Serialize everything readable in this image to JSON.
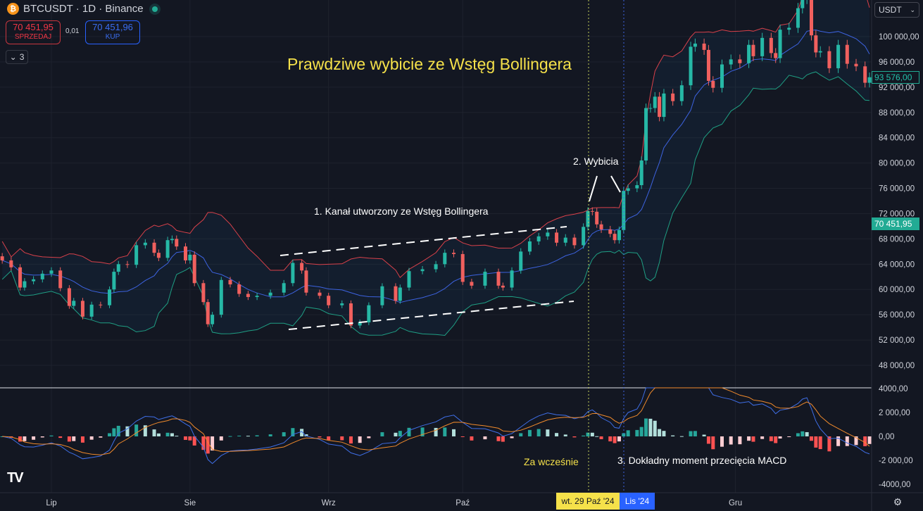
{
  "header": {
    "symbol": "BTCUSDT · 1D · Binance",
    "coin_icon": "bitcoin-icon",
    "sell_price": "70 451,95",
    "sell_label": "SPRZEDAJ",
    "spread": "0,01",
    "buy_price": "70 451,96",
    "buy_label": "KUP",
    "indicators_count": "3",
    "currency": "USDT"
  },
  "annotations": {
    "title": "Prawdziwe wybicie ze Wstęg Bollingera",
    "channel": "1. Kanał utworzony ze Wstęg Bollingera",
    "breakouts": "2. Wybicia",
    "macd_cross": "3. Dokładny moment przecięcia MACD",
    "too_early": "Za wcześnie"
  },
  "price_labels": {
    "last": "70 451,95",
    "current": "93 576,00"
  },
  "crosshair": {
    "date_label": "wt. 29 Paź '24",
    "month_label": "Lis '24"
  },
  "colors": {
    "up": "#26b8a6",
    "down": "#f0605e",
    "band_upper": "#d9414a",
    "band_mid": "#3d63e0",
    "band_lower": "#1f9f84",
    "macd": "#3f6fe8",
    "signal": "#f08a2c",
    "title": "#f5e14a"
  },
  "chart_data": {
    "type": "candlestick",
    "indicators": [
      "Bollinger Bands",
      "MACD"
    ],
    "price_ticks": [
      "100 000,00",
      "96 000,00",
      "92 000,00",
      "88 000,00",
      "84 000,00",
      "80 000,00",
      "76 000,00",
      "72 000,00",
      "68 000,00",
      "64 000,00",
      "60 000,00",
      "56 000,00",
      "52 000,00",
      "48 000,00"
    ],
    "price_tick_values": [
      100000,
      96000,
      92000,
      88000,
      84000,
      80000,
      76000,
      72000,
      68000,
      64000,
      60000,
      56000,
      52000,
      48000
    ],
    "macd_ticks": [
      "4000,00",
      "2 000,00",
      "0,00",
      "-2 000,00",
      "-4000,00"
    ],
    "macd_tick_values": [
      4000,
      2000,
      0,
      -2000,
      -4000
    ],
    "x_ticks": [
      {
        "label": "Lip",
        "date": "2024-07-01"
      },
      {
        "label": "Sie",
        "date": "2024-08-01"
      },
      {
        "label": "Wrz",
        "date": "2024-09-01"
      },
      {
        "label": "Paź",
        "date": "2024-10-01"
      },
      {
        "label": "Gru",
        "date": "2024-12-01"
      }
    ],
    "closes": [
      [
        "2024-06-20",
        64600
      ],
      [
        "2024-06-22",
        63500
      ],
      [
        "2024-06-24",
        60300
      ],
      [
        "2024-06-25",
        61300
      ],
      [
        "2024-06-27",
        61600
      ],
      [
        "2024-06-29",
        62500
      ],
      [
        "2024-07-01",
        63000
      ],
      [
        "2024-07-03",
        60200
      ],
      [
        "2024-07-05",
        57400
      ],
      [
        "2024-07-06",
        58200
      ],
      [
        "2024-07-08",
        55700
      ],
      [
        "2024-07-10",
        57600
      ],
      [
        "2024-07-12",
        57500
      ],
      [
        "2024-07-14",
        60000
      ],
      [
        "2024-07-15",
        62800
      ],
      [
        "2024-07-16",
        64000
      ],
      [
        "2024-07-18",
        63900
      ],
      [
        "2024-07-20",
        67000
      ],
      [
        "2024-07-22",
        67400
      ],
      [
        "2024-07-24",
        65800
      ],
      [
        "2024-07-25",
        65000
      ],
      [
        "2024-07-27",
        67800
      ],
      [
        "2024-07-28",
        68000
      ],
      [
        "2024-07-29",
        66800
      ],
      [
        "2024-07-31",
        64600
      ],
      [
        "2024-08-01",
        65500
      ],
      [
        "2024-08-02",
        61000
      ],
      [
        "2024-08-04",
        58000
      ],
      [
        "2024-08-05",
        54500
      ],
      [
        "2024-08-06",
        56000
      ],
      [
        "2024-08-08",
        61500
      ],
      [
        "2024-08-10",
        60800
      ],
      [
        "2024-08-12",
        59300
      ],
      [
        "2024-08-14",
        58800
      ],
      [
        "2024-08-16",
        59000
      ],
      [
        "2024-08-19",
        59500
      ],
      [
        "2024-08-22",
        61000
      ],
      [
        "2024-08-24",
        64200
      ],
      [
        "2024-08-26",
        63000
      ],
      [
        "2024-08-27",
        59500
      ],
      [
        "2024-08-30",
        59000
      ],
      [
        "2024-09-01",
        57500
      ],
      [
        "2024-09-04",
        57800
      ],
      [
        "2024-09-06",
        54300
      ],
      [
        "2024-09-08",
        54800
      ],
      [
        "2024-09-10",
        57500
      ],
      [
        "2024-09-13",
        60500
      ],
      [
        "2024-09-16",
        58200
      ],
      [
        "2024-09-17",
        60300
      ],
      [
        "2024-09-19",
        62900
      ],
      [
        "2024-09-22",
        63200
      ],
      [
        "2024-09-25",
        64000
      ],
      [
        "2024-09-27",
        65800
      ],
      [
        "2024-09-29",
        65600
      ],
      [
        "2024-10-01",
        61200
      ],
      [
        "2024-10-03",
        60600
      ],
      [
        "2024-10-06",
        62800
      ],
      [
        "2024-10-09",
        60600
      ],
      [
        "2024-10-10",
        60300
      ],
      [
        "2024-10-12",
        63000
      ],
      [
        "2024-10-14",
        66000
      ],
      [
        "2024-10-16",
        67600
      ],
      [
        "2024-10-18",
        68400
      ],
      [
        "2024-10-20",
        69000
      ],
      [
        "2024-10-22",
        67400
      ],
      [
        "2024-10-24",
        68200
      ],
      [
        "2024-10-26",
        67000
      ],
      [
        "2024-10-28",
        69900
      ],
      [
        "2024-10-29",
        72400
      ],
      [
        "2024-10-30",
        72300
      ],
      [
        "2024-10-31",
        70300
      ],
      [
        "2024-11-01",
        69500
      ],
      [
        "2024-11-03",
        68800
      ],
      [
        "2024-11-04",
        67800
      ],
      [
        "2024-11-05",
        69400
      ],
      [
        "2024-11-06",
        75600
      ],
      [
        "2024-11-07",
        76000
      ],
      [
        "2024-11-09",
        76500
      ],
      [
        "2024-11-10",
        80400
      ],
      [
        "2024-11-11",
        88700
      ],
      [
        "2024-11-12",
        88700
      ],
      [
        "2024-11-13",
        90500
      ],
      [
        "2024-11-14",
        87300
      ],
      [
        "2024-11-15",
        91000
      ],
      [
        "2024-11-17",
        89800
      ],
      [
        "2024-11-19",
        92300
      ],
      [
        "2024-11-21",
        98400
      ],
      [
        "2024-11-22",
        98900
      ],
      [
        "2024-11-24",
        97900
      ],
      [
        "2024-11-25",
        93000
      ],
      [
        "2024-11-26",
        91900
      ],
      [
        "2024-11-28",
        95600
      ],
      [
        "2024-11-30",
        96400
      ],
      [
        "2024-12-02",
        95800
      ],
      [
        "2024-12-04",
        98700
      ],
      [
        "2024-12-05",
        96900
      ],
      [
        "2024-12-07",
        99800
      ],
      [
        "2024-12-09",
        97400
      ],
      [
        "2024-12-10",
        96600
      ],
      [
        "2024-12-11",
        101100
      ],
      [
        "2024-12-13",
        101400
      ],
      [
        "2024-12-15",
        104500
      ],
      [
        "2024-12-16",
        106000
      ],
      [
        "2024-12-17",
        106100
      ],
      [
        "2024-12-18",
        100200
      ],
      [
        "2024-12-19",
        97500
      ],
      [
        "2024-12-20",
        97700
      ],
      [
        "2024-12-22",
        95000
      ],
      [
        "2024-12-24",
        98700
      ],
      [
        "2024-12-26",
        95700
      ],
      [
        "2024-12-28",
        95300
      ],
      [
        "2024-12-30",
        92700
      ],
      [
        "2024-12-31",
        93576
      ]
    ]
  }
}
